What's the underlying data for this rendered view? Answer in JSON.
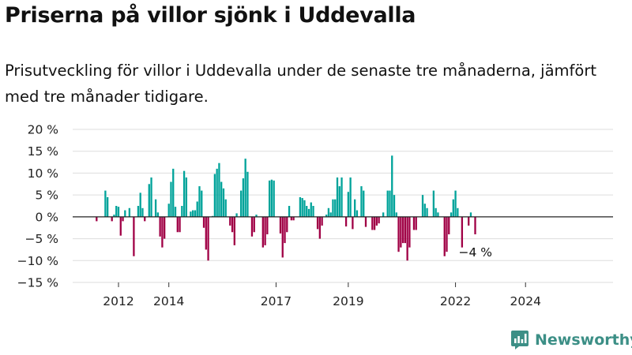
{
  "header": {
    "title": "Priserna på villor sjönk i Uddevalla",
    "subtitle": "Prisutveckling för villor i Uddevalla under de senaste tre månaderna, jämfört med tre månader tidigare."
  },
  "brand": {
    "name": "Newsworthy",
    "color": "#3c8f86"
  },
  "colors": {
    "positive": "#00a39a",
    "negative": "#a00045",
    "grid": "#dddddd",
    "axis": "#222222"
  },
  "chart_data": {
    "type": "bar",
    "title": "Priserna på villor sjönk i Uddevalla",
    "xlabel": "",
    "ylabel": "",
    "ylim": [
      -15,
      20
    ],
    "y_ticks": [
      20,
      15,
      10,
      5,
      0,
      -5,
      -10,
      -15
    ],
    "y_tick_labels": [
      "20 %",
      "15 %",
      "10 %",
      "5 %",
      "0 %",
      "−5 %",
      "−10 %",
      "−15 %"
    ],
    "x_ticks": [
      "2012",
      "2014",
      "2017",
      "2019",
      "2022",
      "2024"
    ],
    "x_tick_index": [
      10,
      33,
      82,
      115,
      164,
      196
    ],
    "grid": true,
    "last_value_label": "−4 %",
    "series": [
      {
        "values": [
          -1,
          0,
          0,
          0,
          6,
          4.5,
          0,
          -1,
          0.5,
          2.5,
          2.3,
          -4.3,
          -1,
          1.5,
          0,
          2,
          0,
          -9,
          0,
          2.5,
          5.5,
          2,
          -1,
          0,
          7.5,
          9,
          0,
          4,
          1,
          -4.5,
          -7,
          -5,
          0,
          3,
          8,
          11,
          2.3,
          -3.5,
          -3.5,
          2.5,
          10.5,
          9,
          0,
          1.2,
          1.5,
          1.5,
          3.5,
          7,
          6,
          -2.5,
          -7.5,
          -10,
          0,
          0.2,
          9.8,
          11,
          12.3,
          8,
          6.5,
          4,
          0,
          -2,
          -3.5,
          -6.5,
          0.8,
          0,
          6,
          8.8,
          13.3,
          10.3,
          0,
          -4.5,
          -3.5,
          0.5,
          0,
          0,
          -7,
          -6.5,
          -4,
          8.3,
          8.5,
          8.3,
          0,
          0,
          -3.8,
          -9.3,
          -6,
          -3.5,
          2.5,
          -0.8,
          -0.8,
          0,
          0,
          4.5,
          4.3,
          3.8,
          2.5,
          1.8,
          3.3,
          2.5,
          0,
          -2.8,
          -5,
          -2,
          0,
          0.5,
          2,
          1,
          4,
          4,
          9,
          7,
          9,
          0,
          -2.2,
          5.7,
          9,
          -2.8,
          4,
          1.5,
          0,
          7,
          6,
          -2.3,
          0,
          0,
          -3,
          -3,
          -2,
          -1.5,
          0,
          1,
          0,
          6,
          6,
          14,
          5,
          1,
          -8,
          -7,
          -6,
          -6,
          -10,
          -7,
          0,
          -3,
          -3,
          0,
          0,
          5,
          3,
          2,
          0,
          0,
          6,
          2,
          1,
          0,
          0,
          -9,
          -8,
          -4,
          1,
          4,
          6,
          2,
          0,
          -7,
          0,
          0,
          -2,
          1,
          0,
          -4
        ]
      }
    ]
  }
}
